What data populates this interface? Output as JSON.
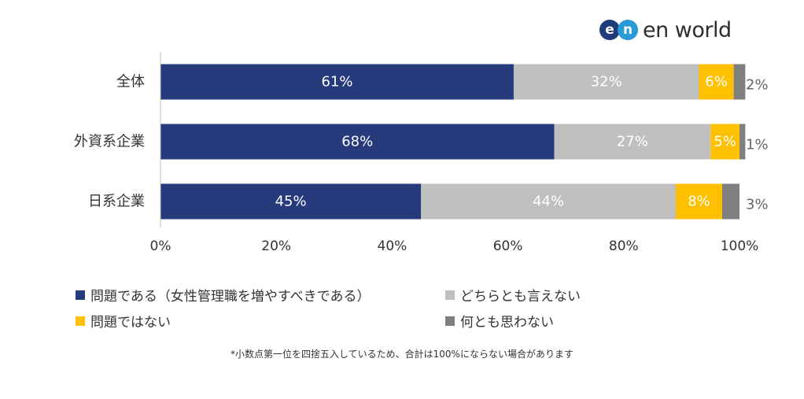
{
  "brand": {
    "logo_letters": [
      "e",
      "n"
    ],
    "logo_colors": [
      "#1e3c7a",
      "#2a9ad6"
    ],
    "name": "en world"
  },
  "chart_data": {
    "type": "bar",
    "orientation": "horizontal",
    "stacked": true,
    "categories": [
      "全体",
      "外資系企業",
      "日系企業"
    ],
    "series": [
      {
        "name": "問題である（女性管理職を増やすべきである）",
        "color": "#263a7c",
        "values": [
          61,
          68,
          45
        ],
        "labels": [
          "61%",
          "68%",
          "45%"
        ]
      },
      {
        "name": "どちらとも言えない",
        "color": "#bfbfbf",
        "values": [
          32,
          27,
          44
        ],
        "labels": [
          "32%",
          "27%",
          "44%"
        ]
      },
      {
        "name": "問題ではない",
        "color": "#ffc000",
        "values": [
          6,
          5,
          8
        ],
        "labels": [
          "6%",
          "5%",
          "8%"
        ]
      },
      {
        "name": "何とも思わない",
        "color": "#7f7f7f",
        "values": [
          2,
          1,
          3
        ],
        "labels": [
          "2%",
          "1%",
          "3%"
        ]
      }
    ],
    "xlim": [
      0,
      100
    ],
    "xticks": [
      "0%",
      "20%",
      "40%",
      "60%",
      "80%",
      "100%"
    ],
    "grid": false,
    "legend_position": "bottom",
    "title": "",
    "xlabel": "",
    "ylabel": ""
  },
  "footnote": "*小数点第一位を四捨五入しているため、合計は100%にならない場合があります"
}
